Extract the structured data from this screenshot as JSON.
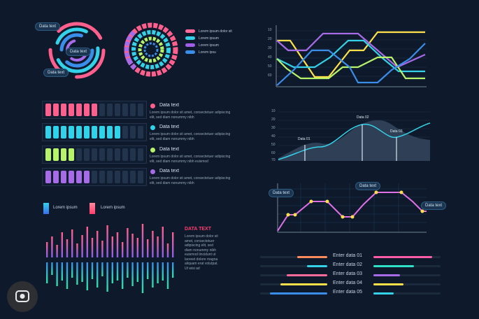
{
  "radial": {
    "tag_top": "Data text",
    "tag_mid": "Data text",
    "tag_bottom": "Data text"
  },
  "legend_top": [
    {
      "label": "Lorem ipsum dolor sit",
      "color": "#ff6b9a"
    },
    {
      "label": "Lorem ipsum",
      "color": "#35d1e8"
    },
    {
      "label": "Lorem ipsum",
      "color": "#a25ee8"
    },
    {
      "label": "Lorem ipsu",
      "color": "#3a8de8"
    }
  ],
  "line_chart_1": {
    "ticks": [
      "10",
      "20",
      "30",
      "40",
      "50",
      "60"
    ]
  },
  "bar_rows": [
    {
      "title": "Data text",
      "color": "#ff5f8c",
      "desc": "Lorem ipsum dolor sit amet, consectetuer adipiscing elit, sed diam nonummy nibh"
    },
    {
      "title": "Data text",
      "color": "#2fd4ea",
      "desc": "Lorem ipsum dolor sit amet, consectetuer adipiscing elit, sed diam nonummy nibh"
    },
    {
      "title": "Data text",
      "color": "#b6f26a",
      "desc": "Lorem ipsum dolor sit amet, consectetuer adipiscing elit, sed diam nonummy nibh euismod"
    },
    {
      "title": "Data text",
      "color": "#a86be8",
      "desc": "Lorem ipsum dolor sit amet, consectetuer adipiscing elit, sed diam nonummy nibh"
    }
  ],
  "area_chart": {
    "ticks": [
      "10",
      "20",
      "30",
      "40",
      "50",
      "60",
      "70"
    ],
    "tag_1": "Data 01",
    "tag_2": "Data 02",
    "tag_3": "Data 03"
  },
  "legend_bottom": [
    {
      "label": "Lorem ipsum",
      "color": "#2fa8e8"
    },
    {
      "label": "Lorem ipsum",
      "color": "#ff5f8c"
    }
  ],
  "wave": {
    "heading": "DATA TEXT",
    "paragraph": "Lorem ipsum dolor sit amet, consectetuer adipiscing elit, sed diam nonummy nibh euismod tincidunt ut laoreet dolore magna aliquam erat volutpat. Ut wisi ad"
  },
  "point_chart": {
    "tag_left": "Data text",
    "tag_mid": "Data text",
    "tag_right": "Data text"
  },
  "enter_rows": [
    {
      "label": "Enter data 01",
      "left_color": "#ff8a5c",
      "right_color": "#ff5ca8",
      "left_val": 0.45,
      "right_val": 0.88
    },
    {
      "label": "Enter data 02",
      "left_color": "#35d1e8",
      "right_color": "#2fe0c8",
      "left_val": 0.3,
      "right_val": 0.6
    },
    {
      "label": "Enter data 03",
      "left_color": "#ff6b9a",
      "right_color": "#a86be8",
      "left_val": 0.6,
      "right_val": 0.4
    },
    {
      "label": "Enter data 04",
      "left_color": "#ffe04a",
      "right_color": "#ffe04a",
      "left_val": 0.7,
      "right_val": 0.45
    },
    {
      "label": "Enter data 05",
      "left_color": "#3a8de8",
      "right_color": "#35d1e8",
      "left_val": 0.85,
      "right_val": 0.3
    }
  ]
}
